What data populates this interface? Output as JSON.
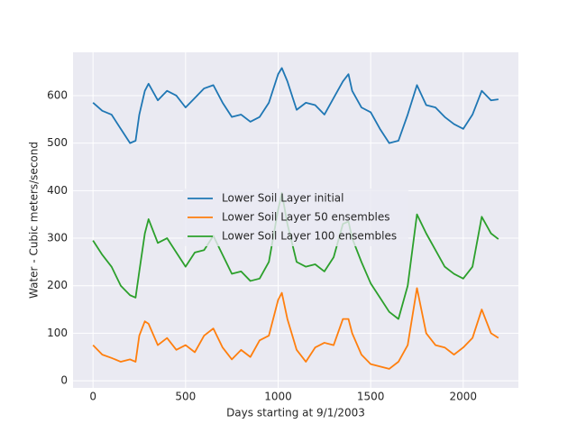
{
  "chart_data": {
    "type": "line",
    "xlabel": "Days starting at 9/1/2003",
    "ylabel": "Water - Cubic meters/second",
    "x": [
      0,
      50,
      100,
      150,
      200,
      230,
      250,
      280,
      300,
      350,
      400,
      450,
      500,
      550,
      600,
      650,
      700,
      750,
      800,
      850,
      900,
      950,
      1000,
      1020,
      1050,
      1100,
      1150,
      1200,
      1250,
      1300,
      1350,
      1380,
      1400,
      1450,
      1500,
      1550,
      1600,
      1650,
      1700,
      1750,
      1800,
      1850,
      1900,
      1950,
      2000,
      2050,
      2100,
      2150,
      2190
    ],
    "series": [
      {
        "name": "Lower Soil Layer initial",
        "color": "#1f77b4",
        "values": [
          585,
          568,
          560,
          530,
          500,
          505,
          560,
          610,
          625,
          590,
          610,
          600,
          575,
          595,
          615,
          622,
          585,
          555,
          560,
          545,
          555,
          585,
          645,
          658,
          630,
          570,
          585,
          580,
          560,
          595,
          630,
          645,
          610,
          575,
          565,
          530,
          500,
          505,
          560,
          622,
          580,
          575,
          555,
          540,
          530,
          560,
          610,
          590,
          592
        ]
      },
      {
        "name": "Lower Soil Layer 50 ensembles",
        "color": "#ff7f0e",
        "values": [
          75,
          55,
          48,
          40,
          45,
          40,
          95,
          125,
          120,
          75,
          90,
          65,
          75,
          60,
          95,
          110,
          70,
          45,
          65,
          50,
          85,
          95,
          170,
          185,
          130,
          65,
          40,
          70,
          80,
          75,
          130,
          130,
          100,
          55,
          35,
          30,
          25,
          40,
          75,
          195,
          100,
          75,
          70,
          55,
          70,
          90,
          150,
          100,
          90
        ]
      },
      {
        "name": "Lower Soil Layer 100 ensembles",
        "color": "#2ca02c",
        "values": [
          295,
          265,
          240,
          200,
          180,
          175,
          230,
          310,
          340,
          290,
          300,
          270,
          240,
          270,
          275,
          305,
          265,
          225,
          230,
          210,
          215,
          250,
          360,
          395,
          330,
          250,
          240,
          245,
          230,
          260,
          330,
          335,
          300,
          250,
          205,
          175,
          145,
          130,
          200,
          350,
          310,
          275,
          240,
          225,
          215,
          240,
          345,
          310,
          298
        ]
      }
    ],
    "xlim": [
      -108,
      2298
    ],
    "ylim": [
      -15,
      691
    ],
    "xticks": [
      0,
      500,
      1000,
      1500,
      2000
    ],
    "yticks": [
      0,
      100,
      200,
      300,
      400,
      500,
      600
    ],
    "grid": true,
    "background": "#eaeaf2",
    "legend": "center"
  }
}
